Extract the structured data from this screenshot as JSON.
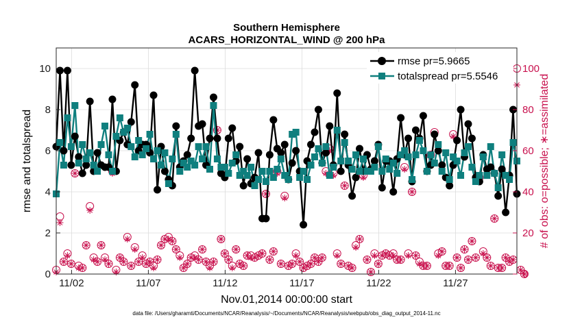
{
  "chart_data": {
    "type": "line",
    "title": "Southern Hemisphere",
    "subtitle": "ACARS_HORIZONTAL_WIND @ 200 hPa",
    "xlabel": "Nov.01,2014 00:00:00 start",
    "ylabel": "rmse and totalspread",
    "ylabel_right": "# of obs: o=possible; ∗=assimilated",
    "footnote": "data file: /Users/gharamti/Documents/NCAR/Reanalysis/~/Documents/NCAR/Reanalysis/webpub/obs_diag_output_2014-11.nc",
    "x_ticks": [
      {
        "label": "11/02",
        "day": 2
      },
      {
        "label": "11/07",
        "day": 7
      },
      {
        "label": "11/12",
        "day": 12
      },
      {
        "label": "11/17",
        "day": 17
      },
      {
        "label": "11/22",
        "day": 22
      },
      {
        "label": "11/27",
        "day": 27
      }
    ],
    "xlim": [
      1,
      31
    ],
    "ylim": [
      0,
      11
    ],
    "y_ticks": [
      0,
      2,
      4,
      6,
      8,
      10
    ],
    "ylim_right": [
      0,
      110
    ],
    "y_ticks_right": [
      0,
      20,
      40,
      60,
      80,
      100
    ],
    "series": [
      {
        "name": "rmse",
        "legend": "rmse pr=5.9665",
        "color": "#000000",
        "axis": "left",
        "values": [
          6.2,
          9.9,
          6.0,
          9.9,
          5.3,
          6.7,
          5.7,
          4.9,
          5.3,
          8.4,
          5.0,
          5.9,
          5.3,
          5.2,
          5.2,
          8.5,
          5.0,
          6.5,
          6.9,
          6.3,
          7.4,
          9.2,
          6.0,
          6.3,
          6.3,
          5.9,
          8.7,
          4.1,
          6.2,
          5.0,
          4.6,
          4.3,
          7.2,
          5.2,
          5.5,
          5.8,
          6.6,
          9.9,
          7.2,
          7.3,
          5.3,
          6.6,
          8.6,
          6.6,
          4.9,
          4.7,
          6.6,
          7.1,
          5.5,
          6.2,
          4.3,
          5.6,
          4.4,
          4.7,
          5.9,
          2.7,
          2.7,
          5.8,
          7.5,
          6.1,
          5.9,
          6.3,
          4.6,
          5.4,
          6.0,
          5.0,
          2.4,
          5.5,
          6.3,
          6.9,
          8.0,
          5.4,
          5.9,
          7.2,
          5.3,
          8.8,
          5.0,
          6.8,
          5.3,
          3.8,
          4.7,
          6.1,
          5.0,
          5.8,
          5.1,
          5.5,
          6.3,
          4.2,
          5.5,
          5.5,
          4.0,
          5.6,
          7.6,
          5.8,
          6.6,
          4.5,
          7.0,
          6.6,
          7.7,
          5.0,
          5.3,
          6.8,
          6.0,
          5.3,
          4.7,
          4.3,
          5.3,
          6.5,
          8.0,
          5.7,
          7.3,
          6.6,
          4.7,
          4.5,
          5.8,
          5.1,
          5.2,
          4.9,
          3.8,
          5.1,
          3.0,
          4.8,
          8.0,
          3.9
        ]
      },
      {
        "name": "totalspread",
        "legend": "totalspread pr=5.5546",
        "color": "#0f7f7e",
        "axis": "left",
        "values": [
          3.9,
          6.4,
          5.3,
          7.6,
          6.2,
          8.2,
          5.4,
          6.3,
          5.6,
          5.9,
          5.3,
          5.0,
          6.3,
          7.2,
          5.8,
          5.0,
          6.7,
          7.6,
          6.9,
          7.1,
          6.2,
          5.7,
          6.5,
          5.8,
          6.1,
          6.8,
          5.6,
          6.0,
          5.3,
          5.9,
          4.4,
          5.6,
          6.8,
          5.0,
          5.4,
          5.2,
          5.5,
          5.3,
          6.2,
          5.6,
          6.2,
          5.1,
          8.2,
          5.6,
          5.2,
          5.2,
          4.9,
          5.4,
          5.8,
          4.8,
          5.0,
          4.8,
          5.2,
          4.3,
          4.6,
          5.0,
          4.5,
          5.0,
          4.7,
          5.1,
          5.6,
          4.8,
          4.6,
          6.8,
          6.9,
          4.7,
          5.0,
          4.6,
          5.3,
          5.7,
          6.1,
          5.4,
          6.2,
          4.8,
          5.2,
          7.0,
          5.5,
          6.4,
          5.5,
          5.1,
          5.8,
          5.0,
          5.6,
          5.0,
          5.0,
          5.2,
          6.2,
          5.0,
          5.6,
          5.1,
          5.4,
          4.9,
          5.8,
          6.0,
          5.7,
          4.6,
          5.8,
          6.5,
          6.0,
          5.0,
          5.8,
          5.4,
          6.3,
          5.0,
          5.9,
          4.6,
          5.7,
          5.5,
          4.8,
          5.9,
          6.2,
          5.2,
          4.5,
          4.8,
          5.7,
          4.8,
          6.2,
          4.9,
          4.2,
          5.8,
          4.8,
          4.6,
          6.4,
          5.5
        ]
      },
      {
        "name": "possible",
        "legend": "",
        "color": "#c8104d",
        "axis": "right",
        "values": [
          2,
          28,
          6,
          10,
          5,
          49,
          4,
          3,
          14,
          33,
          8,
          6,
          14,
          8,
          5,
          50,
          2,
          8,
          6,
          18,
          4,
          13,
          6,
          9,
          5,
          6,
          4,
          7,
          14,
          17,
          18,
          16,
          12,
          9,
          3,
          5,
          8,
          9,
          7,
          12,
          6,
          4,
          6,
          70,
          17,
          10,
          7,
          4,
          12,
          5,
          4,
          9,
          9,
          8,
          9,
          10,
          39,
          7,
          11,
          50,
          5,
          38,
          4,
          5,
          10,
          6,
          3,
          4,
          5,
          8,
          6,
          8,
          50,
          61,
          49,
          10,
          5,
          43,
          4,
          3,
          14,
          17,
          48,
          7,
          1,
          10,
          5,
          9,
          10,
          9,
          10,
          7,
          7,
          52,
          10,
          40,
          9,
          6,
          4,
          4,
          58,
          69,
          10,
          11,
          4,
          4,
          68,
          8,
          3,
          12,
          7,
          16,
          8,
          47,
          11,
          8,
          4,
          27,
          3,
          3,
          8,
          6,
          7,
          100,
          2,
          0
        ]
      },
      {
        "name": "assimilated",
        "legend": "",
        "color": "#c8104d",
        "axis": "right",
        "values": [
          1,
          25,
          6,
          9,
          5,
          49,
          3,
          3,
          14,
          31,
          7,
          6,
          14,
          7,
          5,
          49,
          1,
          8,
          6,
          17,
          4,
          12,
          6,
          8,
          5,
          6,
          3,
          7,
          14,
          17,
          17,
          16,
          12,
          8,
          3,
          5,
          8,
          8,
          7,
          12,
          6,
          3,
          6,
          70,
          17,
          10,
          7,
          3,
          12,
          5,
          4,
          9,
          8,
          8,
          9,
          10,
          39,
          7,
          11,
          49,
          5,
          37,
          4,
          5,
          9,
          6,
          3,
          4,
          5,
          8,
          6,
          8,
          49,
          60,
          48,
          9,
          5,
          43,
          4,
          3,
          13,
          17,
          47,
          7,
          1,
          9,
          5,
          9,
          10,
          9,
          9,
          7,
          7,
          51,
          9,
          40,
          9,
          5,
          4,
          4,
          57,
          68,
          9,
          11,
          4,
          4,
          67,
          8,
          3,
          12,
          7,
          16,
          8,
          46,
          10,
          8,
          4,
          27,
          3,
          3,
          8,
          6,
          7,
          92,
          2,
          0
        ]
      }
    ]
  }
}
